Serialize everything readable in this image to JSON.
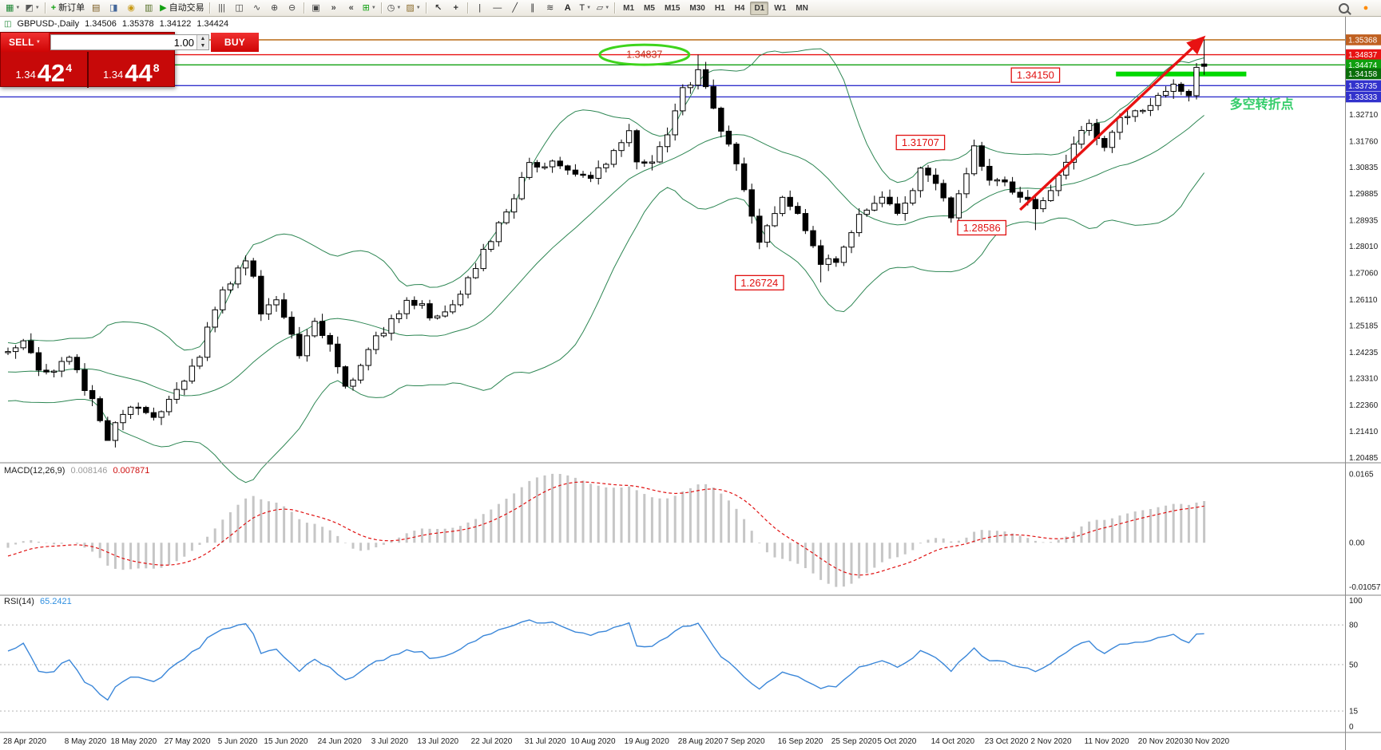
{
  "toolbar": {
    "items": [
      {
        "name": "new-chart",
        "glyph": "▦",
        "color": "#1d8634",
        "caret": true
      },
      {
        "name": "chart-profiles",
        "glyph": "◩",
        "color": "#5a5a5a",
        "caret": true
      },
      {
        "sep": true
      },
      {
        "name": "new-order",
        "glyph": "+",
        "color": "#12a012",
        "bold": true,
        "label": "新订单"
      },
      {
        "name": "market-watch",
        "glyph": "▤",
        "color": "#7a5a20"
      },
      {
        "name": "data-window",
        "glyph": "◨",
        "color": "#44679a"
      },
      {
        "name": "navigator",
        "glyph": "◉",
        "color": "#c89a16"
      },
      {
        "name": "terminal",
        "glyph": "▥",
        "color": "#567028"
      },
      {
        "name": "auto-trading",
        "glyph": "▶",
        "color": "#12a012",
        "label": "自动交易"
      },
      {
        "sep": true
      },
      {
        "name": "bar-chart-type",
        "glyph": "|||",
        "color": "#444"
      },
      {
        "name": "candlestick-chart-type",
        "glyph": "◫",
        "color": "#444"
      },
      {
        "name": "line-chart-type",
        "glyph": "∿",
        "color": "#444"
      },
      {
        "name": "zoom-in",
        "glyph": "⊕",
        "color": "#444"
      },
      {
        "name": "zoom-out",
        "glyph": "⊖",
        "color": "#444"
      },
      {
        "sep": true
      },
      {
        "name": "tile-windows",
        "glyph": "▣",
        "color": "#444"
      },
      {
        "name": "auto-scroll",
        "glyph": "»",
        "color": "#444",
        "bold": true
      },
      {
        "name": "chart-shift",
        "glyph": "«",
        "color": "#444",
        "bold": true
      },
      {
        "name": "add-indicators",
        "glyph": "⊞",
        "color": "#12a012",
        "caret": true
      },
      {
        "sep": true
      },
      {
        "name": "periods",
        "glyph": "◷",
        "color": "#444",
        "caret": true
      },
      {
        "name": "templates",
        "glyph": "▨",
        "color": "#8a6a2a",
        "caret": true
      },
      {
        "sep": true
      },
      {
        "name": "cursor-tool",
        "glyph": "↖",
        "color": "#333",
        "bold": true
      },
      {
        "name": "crosshair-tool",
        "glyph": "+",
        "color": "#333",
        "bold": true
      },
      {
        "sep": true
      },
      {
        "name": "vertical-line-tool",
        "glyph": "|",
        "color": "#333"
      },
      {
        "name": "horizontal-line-tool",
        "glyph": "—",
        "color": "#333"
      },
      {
        "name": "trendline-tool",
        "glyph": "╱",
        "color": "#333"
      },
      {
        "name": "channel-tool",
        "glyph": "∥",
        "color": "#333"
      },
      {
        "name": "fibonacci-tool",
        "glyph": "≋",
        "color": "#333"
      },
      {
        "name": "text-tool",
        "glyph": "A",
        "color": "#222",
        "bold": true
      },
      {
        "name": "label-tool",
        "glyph": "T",
        "color": "#222",
        "caret": true
      },
      {
        "name": "shapes-tool",
        "glyph": "▱",
        "color": "#444",
        "caret": true
      },
      {
        "sep": true
      }
    ],
    "timeframes": [
      "M1",
      "M5",
      "M15",
      "M30",
      "H1",
      "H4",
      "D1",
      "W1",
      "MN"
    ],
    "active_timeframe": "D1",
    "right_items": [
      {
        "name": "search",
        "mag": true
      },
      {
        "name": "notifications",
        "glyph": "●",
        "color": "#ff8a00"
      }
    ]
  },
  "chart_header": {
    "symbol_period": "GBPUSD-,Daily",
    "open": "1.34506",
    "high": "1.35378",
    "low": "1.34122",
    "close": "1.34424"
  },
  "order_panel": {
    "sell_label": "SELL",
    "buy_label": "BUY",
    "volume": "1.00",
    "sell_price_small": "1.34",
    "sell_price_big": "42",
    "sell_price_sup": "4",
    "buy_price_small": "1.34",
    "buy_price_big": "44",
    "buy_price_sup": "8"
  },
  "chart_data": {
    "type": "candlestick",
    "symbol": "GBPUSD-",
    "timeframe": "Daily",
    "last_bar": {
      "open": 1.34506,
      "high": 1.35378,
      "low": 1.34122,
      "close": 1.34424
    },
    "bars_count": 157,
    "y_axis_labels": [
      "1.32710",
      "1.31760",
      "1.30835",
      "1.29885",
      "1.28935",
      "1.28010",
      "1.27060",
      "1.26110",
      "1.25185",
      "1.24235",
      "1.23310",
      "1.22360",
      "1.21410",
      "1.20485"
    ],
    "price_tags": [
      {
        "value": "1.35368",
        "color": "#c06020"
      },
      {
        "value": "1.34837",
        "color": "#e81212"
      },
      {
        "value": "1.34474",
        "color": "#0fa00f"
      },
      {
        "value": "1.34158",
        "color": "#0a6e0a"
      },
      {
        "value": "1.33735",
        "color": "#3232cc"
      },
      {
        "value": "1.33333",
        "color": "#3232cc"
      }
    ],
    "hlines": [
      {
        "price": 1.35368,
        "color": "#b45e00",
        "width": 1.4
      },
      {
        "price": 1.34837,
        "color": "#e81212",
        "width": 1.4
      },
      {
        "price": 1.34474,
        "color": "#11a011",
        "width": 1.4
      },
      {
        "price": 1.33735,
        "color": "#3232cc",
        "width": 1.4
      },
      {
        "price": 1.33333,
        "color": "#3232cc",
        "width": 1.4
      },
      {
        "price": 1.3415,
        "color": "#00d800",
        "width": 6,
        "from_idx": 144.5,
        "to_idx": 161.5
      }
    ],
    "bollinger": {
      "period": 20,
      "deviation": 2,
      "color": "#2d8653"
    },
    "waypoints": [
      [
        -20,
        1.247
      ],
      [
        -16,
        1.239
      ],
      [
        -12,
        1.231
      ],
      [
        -8,
        1.228
      ],
      [
        -4,
        1.235
      ],
      [
        0,
        1.243
      ],
      [
        2,
        1.2465
      ],
      [
        5,
        1.234
      ],
      [
        8,
        1.2405
      ],
      [
        11,
        1.2255
      ],
      [
        13,
        1.212
      ],
      [
        14,
        1.2165
      ],
      [
        16,
        1.223
      ],
      [
        19,
        1.2185
      ],
      [
        21,
        1.225
      ],
      [
        23,
        1.2335
      ],
      [
        25,
        1.242
      ],
      [
        27,
        1.2585
      ],
      [
        29,
        1.268
      ],
      [
        31,
        1.2745
      ],
      [
        32,
        1.269
      ],
      [
        33,
        1.2555
      ],
      [
        35,
        1.2605
      ],
      [
        36,
        1.256
      ],
      [
        38,
        1.2425
      ],
      [
        40,
        1.2525
      ],
      [
        42,
        1.2465
      ],
      [
        44,
        1.23
      ],
      [
        46,
        1.2375
      ],
      [
        48,
        1.247
      ],
      [
        50,
        1.253
      ],
      [
        52,
        1.2615
      ],
      [
        54,
        1.2585
      ],
      [
        55,
        1.2545
      ],
      [
        57,
        1.2555
      ],
      [
        59,
        1.2645
      ],
      [
        61,
        1.2735
      ],
      [
        63,
        1.282
      ],
      [
        65,
        1.2935
      ],
      [
        67,
        1.3035
      ],
      [
        68,
        1.3095
      ],
      [
        70,
        1.3075
      ],
      [
        71,
        1.3115
      ],
      [
        73,
        1.3075
      ],
      [
        74,
        1.3055
      ],
      [
        76,
        1.3045
      ],
      [
        78,
        1.3105
      ],
      [
        80,
        1.3175
      ],
      [
        81,
        1.3225
      ],
      [
        82,
        1.3105
      ],
      [
        83,
        1.3085
      ],
      [
        85,
        1.3145
      ],
      [
        86,
        1.3205
      ],
      [
        88,
        1.3355
      ],
      [
        90,
        1.3425
      ],
      [
        91,
        1.337
      ],
      [
        92,
        1.3285
      ],
      [
        94,
        1.3165
      ],
      [
        95,
        1.3085
      ],
      [
        96,
        1.3005
      ],
      [
        98,
        1.2805
      ],
      [
        99,
        1.288
      ],
      [
        101,
        1.2975
      ],
      [
        102,
        1.2935
      ],
      [
        103,
        1.2925
      ],
      [
        105,
        1.2815
      ],
      [
        106,
        1.2725
      ],
      [
        107,
        1.2745
      ],
      [
        108,
        1.2755
      ],
      [
        110,
        1.2855
      ],
      [
        111,
        1.2925
      ],
      [
        113,
        1.2955
      ],
      [
        114,
        1.2985
      ],
      [
        116,
        1.2915
      ],
      [
        118,
        1.3005
      ],
      [
        119,
        1.3065
      ],
      [
        120,
        1.3045
      ],
      [
        121,
        1.3015
      ],
      [
        123,
        1.2915
      ],
      [
        125,
        1.3065
      ],
      [
        126,
        1.3145
      ],
      [
        128,
        1.3045
      ],
      [
        130,
        1.3025
      ],
      [
        131,
        1.2985
      ],
      [
        133,
        1.2955
      ],
      [
        134,
        1.2925
      ],
      [
        135,
        1.2965
      ],
      [
        136,
        1.2995
      ],
      [
        138,
        1.3095
      ],
      [
        139,
        1.3165
      ],
      [
        141,
        1.3235
      ],
      [
        142,
        1.3185
      ],
      [
        143,
        1.3155
      ],
      [
        145,
        1.3255
      ],
      [
        147,
        1.3275
      ],
      [
        148,
        1.3285
      ],
      [
        150,
        1.3335
      ],
      [
        152,
        1.3385
      ],
      [
        153,
        1.3345
      ],
      [
        154,
        1.3325
      ],
      [
        155,
        1.3425
      ],
      [
        156,
        1.34424
      ]
    ],
    "pinned_bars": [
      {
        "idx": 13,
        "low": 1.2118
      },
      {
        "idx": 90,
        "high": 1.34837
      },
      {
        "idx": 106,
        "low": 1.26724
      },
      {
        "idx": 134,
        "low": 1.28586
      },
      {
        "idx": 156,
        "open": 1.34506,
        "high": 1.35378,
        "low": 1.34122,
        "close": 1.34424
      }
    ],
    "x_labels": [
      {
        "label": "28 Apr 2020",
        "idx": 0
      },
      {
        "label": "8 May 2020",
        "idx": 8
      },
      {
        "label": "18 May 2020",
        "idx": 14
      },
      {
        "label": "27 May 2020",
        "idx": 21
      },
      {
        "label": "5 Jun 2020",
        "idx": 28
      },
      {
        "label": "15 Jun 2020",
        "idx": 34
      },
      {
        "label": "24 Jun 2020",
        "idx": 41
      },
      {
        "label": "3 Jul 2020",
        "idx": 48
      },
      {
        "label": "13 Jul 2020",
        "idx": 54
      },
      {
        "label": "22 Jul 2020",
        "idx": 61
      },
      {
        "label": "31 Jul 2020",
        "idx": 68
      },
      {
        "label": "10 Aug 2020",
        "idx": 74
      },
      {
        "label": "19 Aug 2020",
        "idx": 81
      },
      {
        "label": "28 Aug 2020",
        "idx": 88
      },
      {
        "label": "7 Sep 2020",
        "idx": 94
      },
      {
        "label": "16 Sep 2020",
        "idx": 101
      },
      {
        "label": "25 Sep 2020",
        "idx": 108
      },
      {
        "label": "5 Oct 2020",
        "idx": 114
      },
      {
        "label": "14 Oct 2020",
        "idx": 121
      },
      {
        "label": "23 Oct 2020",
        "idx": 128
      },
      {
        "label": "2 Nov 2020",
        "idx": 134
      },
      {
        "label": "11 Nov 2020",
        "idx": 141
      },
      {
        "label": "20 Nov 2020",
        "idx": 148
      },
      {
        "label": "30 Nov 2020",
        "idx": 154
      }
    ],
    "annotations": [
      {
        "type": "ellipse",
        "text": "1.34837",
        "idx": 83,
        "price": 1.34837,
        "text_color": "#c2331f",
        "color": "#3fd41c"
      },
      {
        "type": "box",
        "text": "1.34150",
        "idx": 134,
        "price": 1.3411,
        "color": "#e01010"
      },
      {
        "type": "box",
        "text": "1.31707",
        "idx": 119,
        "price": 1.3171,
        "color": "#e01010"
      },
      {
        "type": "box",
        "text": "1.28586",
        "idx": 127,
        "price": 1.2867,
        "color": "#e01010"
      },
      {
        "type": "box",
        "text": "1.26724",
        "idx": 98,
        "price": 1.2671,
        "color": "#e01010"
      },
      {
        "type": "text",
        "text": "多空转折点",
        "idx": 163.5,
        "price": 1.3292,
        "color": "#35cd6b",
        "size": 16
      },
      {
        "type": "arrow",
        "from_idx": 132,
        "from_price": 1.2931,
        "to_idx": 155.8,
        "to_price": 1.3542,
        "color": "#e81212",
        "width": 3.4
      }
    ],
    "indicators": {
      "macd": {
        "name": "MACD(12,26,9)",
        "value_main": "0.008146",
        "value_signal": "0.007871",
        "scale_top": "0.0165",
        "scale_zero": "0.00",
        "scale_bottom": "-0.010571",
        "histogram_color": "#c6c6c6",
        "signal_color": "#e01010"
      },
      "rsi": {
        "name": "RSI(14)",
        "value": "65.2421",
        "scale": [
          100,
          80,
          50,
          15,
          0
        ],
        "levels": [
          80,
          50,
          15
        ],
        "color": "#3b87d9"
      }
    }
  }
}
